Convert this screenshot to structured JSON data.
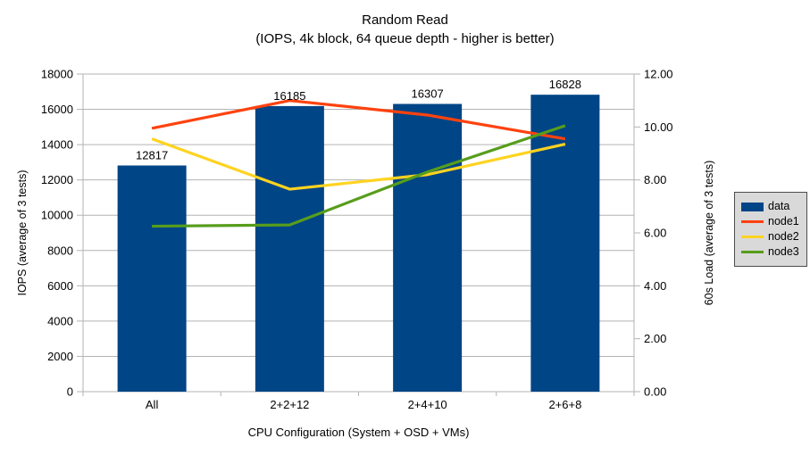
{
  "title": "Random Read",
  "subtitle": "(IOPS, 4k block, 64 queue depth - higher is better)",
  "chart_data": {
    "type": "bar+line combo",
    "categories": [
      "All",
      "2+2+12",
      "2+4+10",
      "2+6+8"
    ],
    "bar_series": {
      "name": "data",
      "axis": "left",
      "values": [
        12817,
        16185,
        16307,
        16828
      ],
      "data_labels": [
        "12817",
        "16185",
        "16307",
        "16828"
      ],
      "color": "#004586"
    },
    "line_series": [
      {
        "name": "node1",
        "axis": "right",
        "values": [
          9.95,
          11.0,
          10.45,
          9.55
        ],
        "color": "#FF420E"
      },
      {
        "name": "node2",
        "axis": "right",
        "values": [
          9.55,
          7.65,
          8.2,
          9.35
        ],
        "color": "#FFD320"
      },
      {
        "name": "node3",
        "axis": "right",
        "values": [
          6.25,
          6.3,
          8.3,
          10.05
        ],
        "color": "#579D1C"
      }
    ],
    "xlabel": "CPU Configuration (System + OSD + VMs)",
    "ylabel_left": "IOPS (average of 3 tests)",
    "ylabel_right": "60s Load (average of 3 tests)",
    "y_left": {
      "min": 0,
      "max": 18000,
      "step": 2000
    },
    "y_right": {
      "min": 0,
      "max": 12,
      "step": 2,
      "decimals": 2
    },
    "grid": true,
    "legend_position": "right",
    "colors": {
      "background": "#FFFFFF",
      "grid": "#B3B3B3",
      "axis": "#B3B3B3",
      "text": "#000000",
      "legend_bg": "#D9D9D9",
      "legend_border": "#4D4D4D"
    }
  }
}
